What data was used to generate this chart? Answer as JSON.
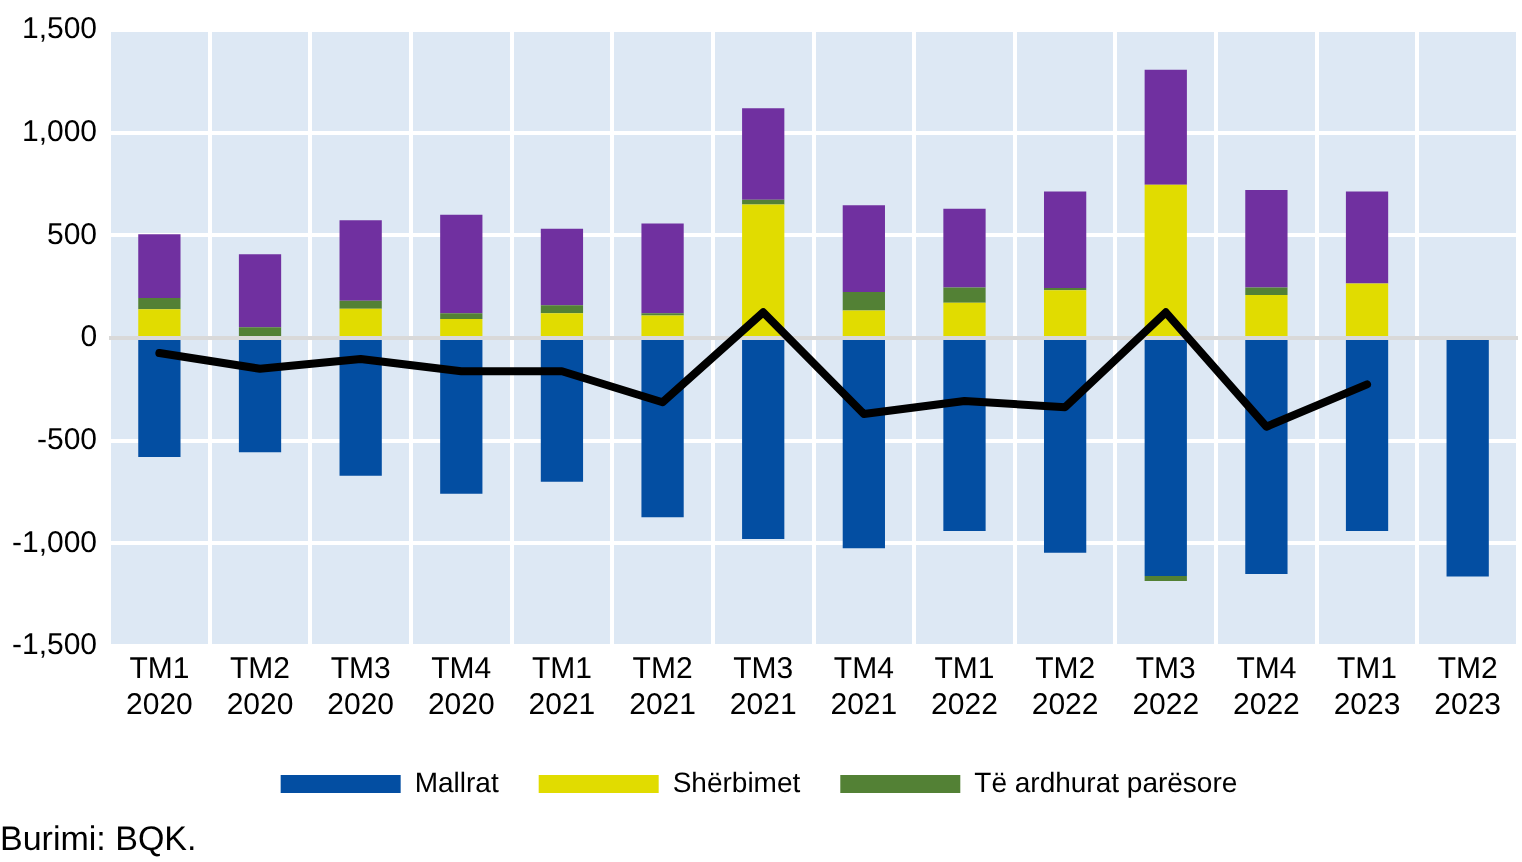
{
  "chart_data": {
    "type": "bar",
    "stacked": true,
    "categories": [
      "TM1 2020",
      "TM2 2020",
      "TM3 2020",
      "TM4 2020",
      "TM1 2021",
      "TM2 2021",
      "TM3 2021",
      "TM4 2021",
      "TM1 2022",
      "TM2 2022",
      "TM3 2022",
      "TM4 2022",
      "TM1 2023",
      "TM2 2023"
    ],
    "series": [
      {
        "name": "Mallrat",
        "color": "#034ea2",
        "values": [
          -580,
          -556,
          -671,
          -758,
          -700,
          -873,
          -979,
          -1024,
          -940,
          -1046,
          -1159,
          -1149,
          -940,
          -1162
        ]
      },
      {
        "name": "Shërbimet",
        "color": "#e1dc00",
        "values": [
          140,
          0,
          143,
          93,
          121,
          109,
          650,
          134,
          172,
          233,
          746,
          210,
          265,
          null
        ]
      },
      {
        "name": "Të ardhurat parësore",
        "color": "#538135",
        "values": [
          55,
          52,
          39,
          28,
          39,
          12,
          23,
          90,
          74,
          10,
          -25,
          36,
          0,
          null
        ]
      },
      {
        "color": "#7030a0",
        "values": [
          310,
          356,
          392,
          479,
          372,
          437,
          446,
          423,
          383,
          471,
          561,
          475,
          449,
          null
        ]
      },
      {
        "type": "line",
        "color": "#000000",
        "values": [
          -73,
          -150,
          -102,
          -162,
          -162,
          -313,
          125,
          -370,
          -307,
          -337,
          125,
          -432,
          -226,
          null
        ]
      }
    ],
    "ylim": [
      -1500,
      1500
    ],
    "yticks": [
      {
        "value": -1500,
        "label": "-1,500"
      },
      {
        "value": -1000,
        "label": "-1,000"
      },
      -500,
      0,
      500,
      {
        "value": 1000,
        "label": "1,000"
      },
      {
        "value": 1500,
        "label": "1,500"
      }
    ],
    "grid": true,
    "legend": "bottom",
    "marker": "none",
    "line_style": "solid",
    "annotations": [
      "Burimi: BQK."
    ]
  }
}
